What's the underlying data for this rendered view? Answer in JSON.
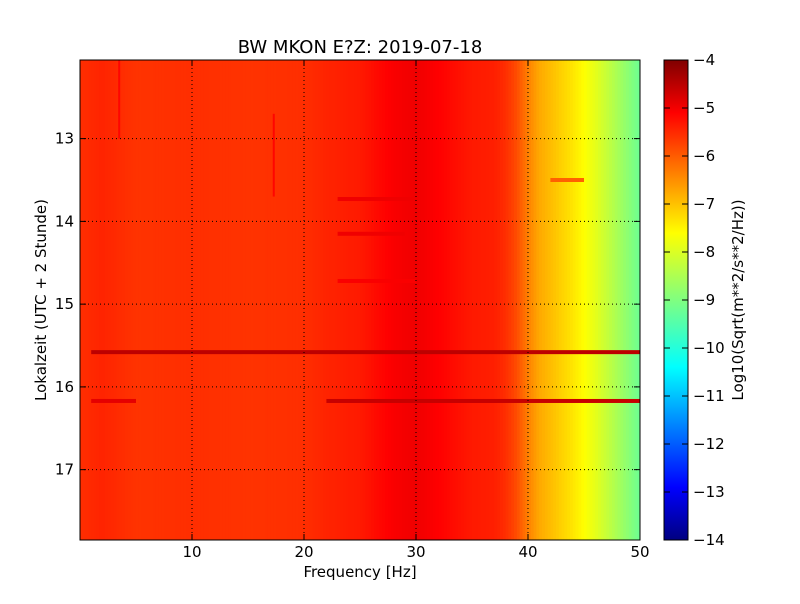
{
  "chart_data": {
    "type": "heatmap",
    "title": "BW MKON E?Z: 2019-07-18",
    "xlabel": "Frequency [Hz]",
    "ylabel": "Lokalzeit (UTC + 2 Stunde)",
    "xlim": [
      0,
      50
    ],
    "ylim": [
      17.85,
      12.05
    ],
    "y_inverted": true,
    "xticks": [
      10,
      20,
      30,
      40,
      50
    ],
    "xtick_labels": [
      "10",
      "20",
      "30",
      "40",
      "50"
    ],
    "yticks": [
      13,
      14,
      15,
      16,
      17
    ],
    "ytick_labels": [
      "13",
      "14",
      "15",
      "16",
      "17"
    ],
    "grid": true,
    "colormap": "jet",
    "colorbar": {
      "label": "Log10(Sqrt(m**2/s**2/Hz))",
      "range": [
        -14,
        -4
      ],
      "ticks": [
        -4,
        -5,
        -6,
        -7,
        -8,
        -9,
        -10,
        -11,
        -12,
        -13,
        -14
      ],
      "tick_labels": [
        "−4",
        "−5",
        "−6",
        "−7",
        "−8",
        "−9",
        "−10",
        "−11",
        "−12",
        "−13",
        "−14"
      ]
    },
    "frequency_profile": {
      "frequency_hz": [
        0,
        2,
        5,
        10,
        15,
        20,
        22,
        25,
        28,
        30,
        32,
        35,
        37,
        38,
        39,
        40,
        41,
        42,
        43,
        44,
        45,
        46,
        47,
        48,
        49,
        50
      ],
      "log_amplitude": [
        -5.7,
        -5.6,
        -5.75,
        -5.7,
        -5.75,
        -5.7,
        -5.6,
        -5.5,
        -5.2,
        -5.1,
        -5.25,
        -5.5,
        -5.55,
        -5.7,
        -6.0,
        -6.5,
        -6.9,
        -7.1,
        -7.3,
        -7.5,
        -7.75,
        -8.0,
        -8.3,
        -8.6,
        -8.9,
        -9.2
      ]
    },
    "horizontal_bands": [
      {
        "time": 15.58,
        "f_start": 1,
        "f_end": 50,
        "log_amplitude": -4.6
      },
      {
        "time": 16.17,
        "f_start": 22,
        "f_end": 50,
        "log_amplitude": -4.7
      },
      {
        "time": 16.17,
        "f_start": 1,
        "f_end": 5,
        "log_amplitude": -5.0
      },
      {
        "time": 13.73,
        "f_start": 23,
        "f_end": 30,
        "log_amplitude": -5.1
      },
      {
        "time": 14.72,
        "f_start": 23,
        "f_end": 30,
        "log_amplitude": -5.2
      },
      {
        "time": 13.5,
        "f_start": 42,
        "f_end": 45,
        "log_amplitude": -6.2
      },
      {
        "time": 14.15,
        "f_start": 23,
        "f_end": 29,
        "log_amplitude": -5.1
      }
    ],
    "vertical_lines": [
      {
        "frequency": 17.3,
        "t_start": 12.7,
        "t_end": 13.7,
        "log_amplitude": -5.3
      },
      {
        "frequency": 3.5,
        "t_start": 12.05,
        "t_end": 13.0,
        "log_amplitude": -5.3
      }
    ]
  }
}
